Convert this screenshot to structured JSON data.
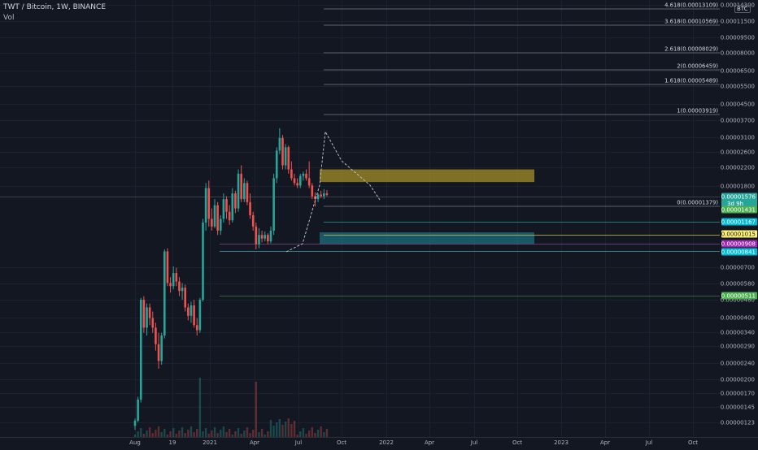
{
  "header": {
    "title": "TWT / Bitcoin, 1W, BINANCE",
    "volume_label": "Vol",
    "unit_badge": "BTC"
  },
  "price_axis": {
    "tick_labels": [
      "0.00014300",
      "0.00011500",
      "0.00009500",
      "0.00008000",
      "0.00006500",
      "0.00005500",
      "0.00004500",
      "0.00003700",
      "0.00003100",
      "0.00002600",
      "0.00002200",
      "0.00001800",
      "0.00000700",
      "0.00000580",
      "0.00000480",
      "0.00000400",
      "0.00000340",
      "0.00000290",
      "0.00000240",
      "0.00000200",
      "0.00000170",
      "0.00000145",
      "0.00000123"
    ]
  },
  "time_axis": {
    "tick_labels": [
      "Aug",
      "19",
      "2021",
      "Apr",
      "Jul",
      "Oct",
      "2022",
      "Apr",
      "Jul",
      "Oct",
      "2023",
      "Apr",
      "Jul",
      "Oct"
    ]
  },
  "fib_levels": [
    {
      "label": "4.618(0.00013109)"
    },
    {
      "label": "3.618(0.00010569)"
    },
    {
      "label": "2.618(0.00008029)"
    },
    {
      "label": "2(0.00006459)"
    },
    {
      "label": "1.618(0.00005489)"
    },
    {
      "label": "1(0.00003919)"
    },
    {
      "label": "0(0.00001379)"
    }
  ],
  "price_badges": [
    {
      "value": "0.00001576",
      "sub": "3d 9h",
      "color": "#26a69a",
      "text_color": "#ffffff"
    },
    {
      "value": "0.00001431",
      "color": "#4caf50",
      "text_color": "#ffffff"
    },
    {
      "value": "0.00001167",
      "color": "#00bcd4",
      "text_color": "#ffffff"
    },
    {
      "value": "0.00001015",
      "color": "#fff176",
      "text_color": "#131722"
    },
    {
      "value": "0.00000908",
      "color": "#9c27b0",
      "text_color": "#ffffff"
    },
    {
      "value": "0.00000841",
      "color": "#00bcd4",
      "text_color": "#ffffff"
    },
    {
      "value": "0.00000511",
      "color": "#4caf50",
      "text_color": "#ffffff"
    }
  ],
  "colors": {
    "background": "#131722",
    "bull": "#26a69a",
    "bear": "#ef5350",
    "zone_resistance": "#b8a228",
    "zone_support": "#1e7b8c"
  },
  "chart_data": {
    "type": "candlestick",
    "symbol": "TWT / Bitcoin",
    "interval": "1W",
    "exchange": "BINANCE",
    "y_scale": "log",
    "y_unit": "BTC",
    "last_price": 1.576e-05,
    "candles": [
      {
        "o": 1.15e-06,
        "h": 1.25e-06,
        "l": 1.1e-06,
        "c": 1.22e-06
      },
      {
        "o": 1.22e-06,
        "h": 1.6e-06,
        "l": 1.2e-06,
        "c": 1.55e-06
      },
      {
        "o": 1.55e-06,
        "h": 4.9e-06,
        "l": 1.5e-06,
        "c": 4.8e-06
      },
      {
        "o": 4.8e-06,
        "h": 5e-06,
        "l": 3.3e-06,
        "c": 3.5e-06
      },
      {
        "o": 3.5e-06,
        "h": 4.6e-06,
        "l": 3.2e-06,
        "c": 4.4e-06
      },
      {
        "o": 4.4e-06,
        "h": 4.6e-06,
        "l": 3.6e-06,
        "c": 3.9e-06
      },
      {
        "o": 3.9e-06,
        "h": 4.2e-06,
        "l": 3.3e-06,
        "c": 3.5e-06
      },
      {
        "o": 3.5e-06,
        "h": 3.7e-06,
        "l": 2.7e-06,
        "c": 2.9e-06
      },
      {
        "o": 2.9e-06,
        "h": 3.3e-06,
        "l": 2.2e-06,
        "c": 2.4e-06
      },
      {
        "o": 2.4e-06,
        "h": 3.3e-06,
        "l": 2.3e-06,
        "c": 3.2e-06
      },
      {
        "o": 3.2e-06,
        "h": 8.5e-06,
        "l": 3.1e-06,
        "c": 8.3e-06
      },
      {
        "o": 8.3e-06,
        "h": 8.6e-06,
        "l": 5.6e-06,
        "c": 5.8e-06
      },
      {
        "o": 5.8e-06,
        "h": 6.2e-06,
        "l": 5.2e-06,
        "c": 5.6e-06
      },
      {
        "o": 5.6e-06,
        "h": 7e-06,
        "l": 5.4e-06,
        "c": 6.5e-06
      },
      {
        "o": 6.5e-06,
        "h": 6.9e-06,
        "l": 5.6e-06,
        "c": 5.9e-06
      },
      {
        "o": 5.9e-06,
        "h": 6.2e-06,
        "l": 5e-06,
        "c": 5.3e-06
      },
      {
        "o": 5.3e-06,
        "h": 5.8e-06,
        "l": 4.8e-06,
        "c": 5.5e-06
      },
      {
        "o": 5.5e-06,
        "h": 5.7e-06,
        "l": 4.2e-06,
        "c": 4.4e-06
      },
      {
        "o": 4.4e-06,
        "h": 4.6e-06,
        "l": 3.8e-06,
        "c": 4e-06
      },
      {
        "o": 4e-06,
        "h": 4.7e-06,
        "l": 3.7e-06,
        "c": 4.5e-06
      },
      {
        "o": 4.5e-06,
        "h": 4.8e-06,
        "l": 3.5e-06,
        "c": 3.6e-06
      },
      {
        "o": 3.6e-06,
        "h": 3.9e-06,
        "l": 3.2e-06,
        "c": 3.4e-06
      },
      {
        "o": 3.4e-06,
        "h": 4.9e-06,
        "l": 3.3e-06,
        "c": 4.8e-06
      },
      {
        "o": 4.8e-06,
        "h": 1.2e-05,
        "l": 4.7e-06,
        "c": 1.15e-05
      },
      {
        "o": 1.15e-05,
        "h": 1.8e-05,
        "l": 1.05e-05,
        "c": 1.7e-05
      },
      {
        "o": 1.7e-05,
        "h": 1.85e-05,
        "l": 1.1e-05,
        "c": 1.2e-05
      },
      {
        "o": 1.2e-05,
        "h": 1.35e-05,
        "l": 1.05e-05,
        "c": 1.1e-05
      },
      {
        "o": 1.1e-05,
        "h": 1.5e-05,
        "l": 1.08e-05,
        "c": 1.4e-05
      },
      {
        "o": 1.4e-05,
        "h": 1.45e-05,
        "l": 1e-05,
        "c": 1.05e-05
      },
      {
        "o": 1.05e-05,
        "h": 1.25e-05,
        "l": 1e-05,
        "c": 1.2e-05
      },
      {
        "o": 1.2e-05,
        "h": 1.6e-05,
        "l": 1.15e-05,
        "c": 1.5e-05
      },
      {
        "o": 1.5e-05,
        "h": 1.55e-05,
        "l": 1.2e-05,
        "c": 1.3e-05
      },
      {
        "o": 1.3e-05,
        "h": 1.4e-05,
        "l": 1.12e-05,
        "c": 1.18e-05
      },
      {
        "o": 1.18e-05,
        "h": 1.7e-05,
        "l": 1.15e-05,
        "c": 1.6e-05
      },
      {
        "o": 1.6e-05,
        "h": 1.65e-05,
        "l": 1.28e-05,
        "c": 1.35e-05
      },
      {
        "o": 1.35e-05,
        "h": 2.1e-05,
        "l": 1.3e-05,
        "c": 2e-05
      },
      {
        "o": 2e-05,
        "h": 2.2e-05,
        "l": 1.45e-05,
        "c": 1.5e-05
      },
      {
        "o": 1.5e-05,
        "h": 1.9e-05,
        "l": 1.45e-05,
        "c": 1.8e-05
      },
      {
        "o": 1.8e-05,
        "h": 1.85e-05,
        "l": 1.4e-05,
        "c": 1.45e-05
      },
      {
        "o": 1.45e-05,
        "h": 1.6e-05,
        "l": 1.2e-05,
        "c": 1.25e-05
      },
      {
        "o": 1.25e-05,
        "h": 1.3e-05,
        "l": 1.05e-05,
        "c": 1.1e-05
      },
      {
        "o": 1.1e-05,
        "h": 1.15e-05,
        "l": 8.5e-06,
        "c": 9e-06
      },
      {
        "o": 9e-06,
        "h": 1.08e-05,
        "l": 8.6e-06,
        "c": 1e-05
      },
      {
        "o": 1e-05,
        "h": 1.05e-05,
        "l": 9.2e-06,
        "c": 9.6e-06
      },
      {
        "o": 9.6e-06,
        "h": 1.04e-05,
        "l": 9.3e-06,
        "c": 1e-05
      },
      {
        "o": 1e-05,
        "h": 1.02e-05,
        "l": 9e-06,
        "c": 9.3e-06
      },
      {
        "o": 9.3e-06,
        "h": 1.1e-05,
        "l": 9.1e-06,
        "c": 1.05e-05
      },
      {
        "o": 1.05e-05,
        "h": 2e-05,
        "l": 1e-05,
        "c": 1.9e-05
      },
      {
        "o": 1.9e-05,
        "h": 2.7e-05,
        "l": 1.8e-05,
        "c": 2.6e-05
      },
      {
        "o": 2.6e-05,
        "h": 3.35e-05,
        "l": 2.5e-05,
        "c": 3e-05
      },
      {
        "o": 3e-05,
        "h": 3.1e-05,
        "l": 2.1e-05,
        "c": 2.2e-05
      },
      {
        "o": 2.2e-05,
        "h": 2.8e-05,
        "l": 2.1e-05,
        "c": 2.7e-05
      },
      {
        "o": 2.7e-05,
        "h": 2.75e-05,
        "l": 2e-05,
        "c": 2.1e-05
      },
      {
        "o": 2.1e-05,
        "h": 2.3e-05,
        "l": 1.85e-05,
        "c": 1.9e-05
      },
      {
        "o": 1.9e-05,
        "h": 2e-05,
        "l": 1.75e-05,
        "c": 1.8e-05
      },
      {
        "o": 1.8e-05,
        "h": 1.9e-05,
        "l": 1.7e-05,
        "c": 1.75e-05
      },
      {
        "o": 1.75e-05,
        "h": 2e-05,
        "l": 1.7e-05,
        "c": 1.95e-05
      },
      {
        "o": 1.95e-05,
        "h": 2.05e-05,
        "l": 1.85e-05,
        "c": 2e-05
      },
      {
        "o": 2e-05,
        "h": 2.1e-05,
        "l": 1.85e-05,
        "c": 1.9e-05
      },
      {
        "o": 1.9e-05,
        "h": 2.3e-05,
        "l": 1.7e-05,
        "c": 1.75e-05
      },
      {
        "o": 1.75e-05,
        "h": 1.8e-05,
        "l": 1.5e-05,
        "c": 1.55e-05
      },
      {
        "o": 1.55e-05,
        "h": 1.62e-05,
        "l": 1.38e-05,
        "c": 1.5e-05
      },
      {
        "o": 1.5e-05,
        "h": 1.6e-05,
        "l": 1.45e-05,
        "c": 1.58e-05
      },
      {
        "o": 1.58e-05,
        "h": 1.65e-05,
        "l": 1.52e-05,
        "c": 1.55e-05
      },
      {
        "o": 1.55e-05,
        "h": 1.68e-05,
        "l": 1.5e-05,
        "c": 1.6e-05
      },
      {
        "o": 1.6e-05,
        "h": 1.66e-05,
        "l": 1.55e-05,
        "c": 1.576e-05
      }
    ],
    "zones": [
      {
        "name": "resistance",
        "top": 2.1e-05,
        "bottom": 1.82e-05
      },
      {
        "name": "support",
        "top": 1.03e-05,
        "bottom": 9e-06
      }
    ]
  }
}
